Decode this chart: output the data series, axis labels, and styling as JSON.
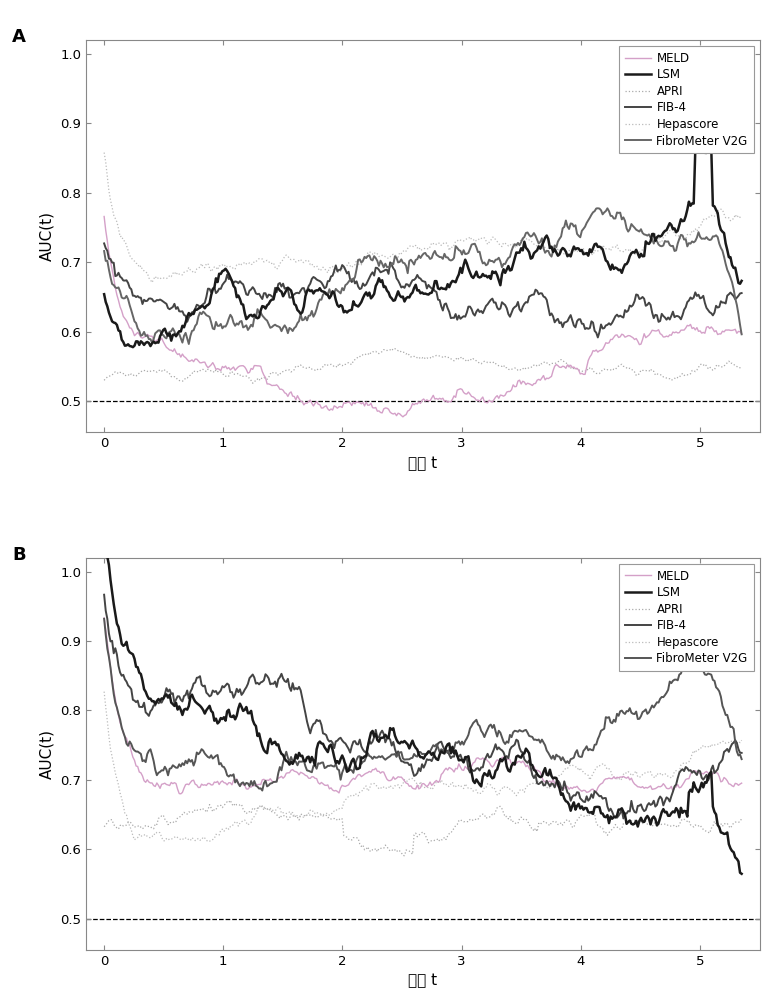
{
  "panel_labels": [
    "A",
    "B"
  ],
  "legend_labels": [
    "MELD",
    "LSM",
    "APRI",
    "FIB-4",
    "Hepascore",
    "FibroMeter V2G"
  ],
  "colors_A": [
    "#d4a0c8",
    "#1a1a1a",
    "#aaaaaa",
    "#444444",
    "#bbbbbb",
    "#666666"
  ],
  "colors_B": [
    "#d4a0c8",
    "#1a1a1a",
    "#aaaaaa",
    "#444444",
    "#bbbbbb",
    "#555555"
  ],
  "linestyles_A": [
    "-",
    "-",
    ":",
    "-",
    ":",
    "-"
  ],
  "linestyles_B": [
    "-",
    "-",
    ":",
    "-",
    ":",
    "-"
  ],
  "linewidths_A": [
    1.0,
    1.8,
    0.9,
    1.4,
    0.9,
    1.4
  ],
  "linewidths_B": [
    1.0,
    1.8,
    0.9,
    1.4,
    0.9,
    1.4
  ],
  "xlabel": "时间 t",
  "ylabel": "AUC(t)",
  "xlim": [
    -0.15,
    5.5
  ],
  "ylim_A": [
    0.455,
    1.02
  ],
  "ylim_B": [
    0.455,
    1.02
  ],
  "yticks_A": [
    0.5,
    0.6,
    0.7,
    0.8,
    0.9,
    1.0
  ],
  "yticks_B": [
    0.5,
    0.6,
    0.7,
    0.8,
    0.9,
    1.0
  ],
  "xticks": [
    0,
    1,
    2,
    3,
    4,
    5
  ],
  "hline_y": 0.5,
  "background_color": "#ffffff"
}
